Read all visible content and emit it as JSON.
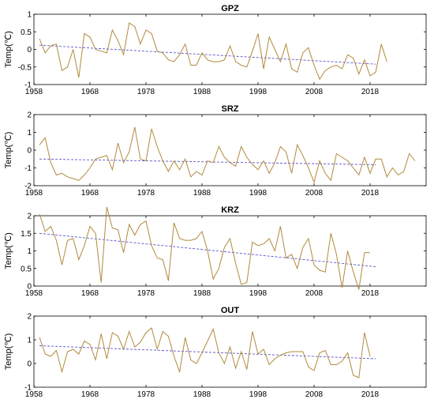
{
  "chart_data": [
    {
      "type": "line",
      "title": "GPZ",
      "ylabel": "Temp(℃)",
      "xlim": [
        1958,
        2028
      ],
      "ylim": [
        -1,
        1
      ],
      "xticks": [
        "1958",
        "1968",
        "1978",
        "1988",
        "1998",
        "2008",
        "2018"
      ],
      "yticks": [
        "-1",
        "-0.5",
        "0",
        "0.5",
        "1"
      ],
      "colors": {
        "line": "#b08a3c",
        "trend": "#5555cc"
      },
      "series": [
        {
          "x_start": 1959,
          "values": [
            0.3,
            -0.1,
            0.1,
            0.15,
            -0.6,
            -0.5,
            0.0,
            -0.8,
            0.45,
            0.35,
            0.0,
            -0.05,
            -0.1,
            0.55,
            0.25,
            -0.15,
            0.75,
            0.65,
            0.15,
            0.55,
            0.45,
            -0.05,
            -0.1,
            -0.3,
            -0.35,
            -0.15,
            0.15,
            -0.45,
            -0.45,
            -0.1,
            -0.3,
            -0.35,
            -0.35,
            -0.3,
            0.1,
            -0.35,
            -0.45,
            -0.5,
            -0.05,
            0.45,
            -0.55,
            0.35,
            0.0,
            -0.35,
            0.15,
            -0.55,
            -0.65,
            -0.1,
            0.05,
            -0.45,
            -0.85,
            -0.6,
            -0.5,
            -0.45,
            -0.55,
            -0.15,
            -0.25,
            -0.7,
            -0.3,
            -0.75,
            -0.65,
            0.15,
            -0.35
          ]
        }
      ],
      "trend": {
        "x": [
          1959,
          2019
        ],
        "y": [
          0.12,
          -0.42
        ]
      }
    },
    {
      "type": "line",
      "title": "SRZ",
      "ylabel": "Temp(℃)",
      "xlim": [
        1958,
        2028
      ],
      "ylim": [
        -2,
        2
      ],
      "xticks": [
        "1958",
        "1968",
        "1978",
        "1988",
        "1998",
        "2008",
        "2018"
      ],
      "yticks": [
        "-2",
        "-1",
        "0",
        "1",
        "2"
      ],
      "colors": {
        "line": "#b08a3c",
        "trend": "#5555cc"
      },
      "series": [
        {
          "x_start": 1959,
          "values": [
            0.3,
            0.7,
            -0.7,
            -1.4,
            -1.3,
            -1.5,
            -1.6,
            -1.7,
            -1.4,
            -1.0,
            -0.5,
            -0.4,
            -0.3,
            -1.1,
            0.4,
            -0.7,
            -0.1,
            1.3,
            -0.5,
            -0.6,
            1.2,
            0.2,
            -0.6,
            -1.2,
            -0.6,
            -1.1,
            -0.5,
            -1.5,
            -1.2,
            -1.4,
            -0.6,
            -0.7,
            0.2,
            -0.4,
            -0.7,
            -0.9,
            0.2,
            -0.4,
            -0.8,
            -1.1,
            -0.6,
            -1.3,
            -0.7,
            0.2,
            -0.1,
            -1.3,
            0.3,
            -0.3,
            -1.0,
            -1.8,
            -0.6,
            -1.3,
            -1.7,
            -0.2,
            -0.4,
            -0.6,
            -1.0,
            -1.4,
            -0.4,
            -1.3,
            -0.5,
            -0.5,
            -1.5,
            -1.0,
            -1.4,
            -1.2,
            -0.2,
            -0.6
          ]
        }
      ],
      "trend": {
        "x": [
          1959,
          2019
        ],
        "y": [
          -0.5,
          -0.82
        ]
      }
    },
    {
      "type": "line",
      "title": "KRZ",
      "ylabel": "Temp(℃)",
      "xlim": [
        1958,
        2028
      ],
      "ylim": [
        0,
        2
      ],
      "xticks": [
        "1958",
        "1968",
        "1978",
        "1988",
        "1998",
        "2008",
        "2018"
      ],
      "yticks": [
        "0",
        "0.5",
        "1",
        "1.5",
        "2"
      ],
      "colors": {
        "line": "#b08a3c",
        "trend": "#5555cc"
      },
      "series": [
        {
          "x_start": 1959,
          "values": [
            2.05,
            1.55,
            1.7,
            1.3,
            0.6,
            1.3,
            1.35,
            0.75,
            1.15,
            1.7,
            1.5,
            0.1,
            2.25,
            1.65,
            1.6,
            0.95,
            1.75,
            1.45,
            1.75,
            1.85,
            1.15,
            0.8,
            0.75,
            0.15,
            1.8,
            1.35,
            1.3,
            1.3,
            1.35,
            1.55,
            1.0,
            0.2,
            0.5,
            1.1,
            1.35,
            0.65,
            0.05,
            0.1,
            1.25,
            1.15,
            1.2,
            1.35,
            1.0,
            1.7,
            0.8,
            0.9,
            0.5,
            1.1,
            1.35,
            0.6,
            0.45,
            0.4,
            1.5,
            0.9,
            -0.05,
            1.0,
            0.4,
            -0.1,
            0.95,
            0.95
          ]
        }
      ],
      "trend": {
        "x": [
          1959,
          2019
        ],
        "y": [
          1.5,
          0.55
        ]
      }
    },
    {
      "type": "line",
      "title": "OUT",
      "ylabel": "Temp(℃)",
      "xlim": [
        1958,
        2028
      ],
      "ylim": [
        -1,
        2
      ],
      "xticks": [
        "1958",
        "1968",
        "1978",
        "1988",
        "1998",
        "2008",
        "2018"
      ],
      "yticks": [
        "-1",
        "0",
        "1",
        "2"
      ],
      "colors": {
        "line": "#b08a3c",
        "trend": "#5555cc"
      },
      "series": [
        {
          "x_start": 1959,
          "values": [
            1.1,
            0.4,
            0.3,
            0.55,
            -0.35,
            0.5,
            0.6,
            0.4,
            0.95,
            0.8,
            0.15,
            1.25,
            0.2,
            1.3,
            1.15,
            0.6,
            1.35,
            0.7,
            0.9,
            1.3,
            1.5,
            0.6,
            1.35,
            1.15,
            0.3,
            -0.35,
            1.1,
            0.15,
            0.0,
            0.45,
            0.95,
            1.45,
            0.45,
            0.0,
            0.7,
            -0.2,
            0.5,
            -0.25,
            1.35,
            0.4,
            0.6,
            -0.05,
            0.2,
            0.35,
            0.45,
            0.5,
            0.5,
            0.5,
            -0.15,
            -0.3,
            0.45,
            0.55,
            -0.05,
            -0.05,
            0.1,
            0.45,
            -0.5,
            -0.6,
            1.3,
            0.3
          ]
        }
      ],
      "trend": {
        "x": [
          1959,
          2019
        ],
        "y": [
          0.75,
          0.2
        ]
      }
    }
  ]
}
